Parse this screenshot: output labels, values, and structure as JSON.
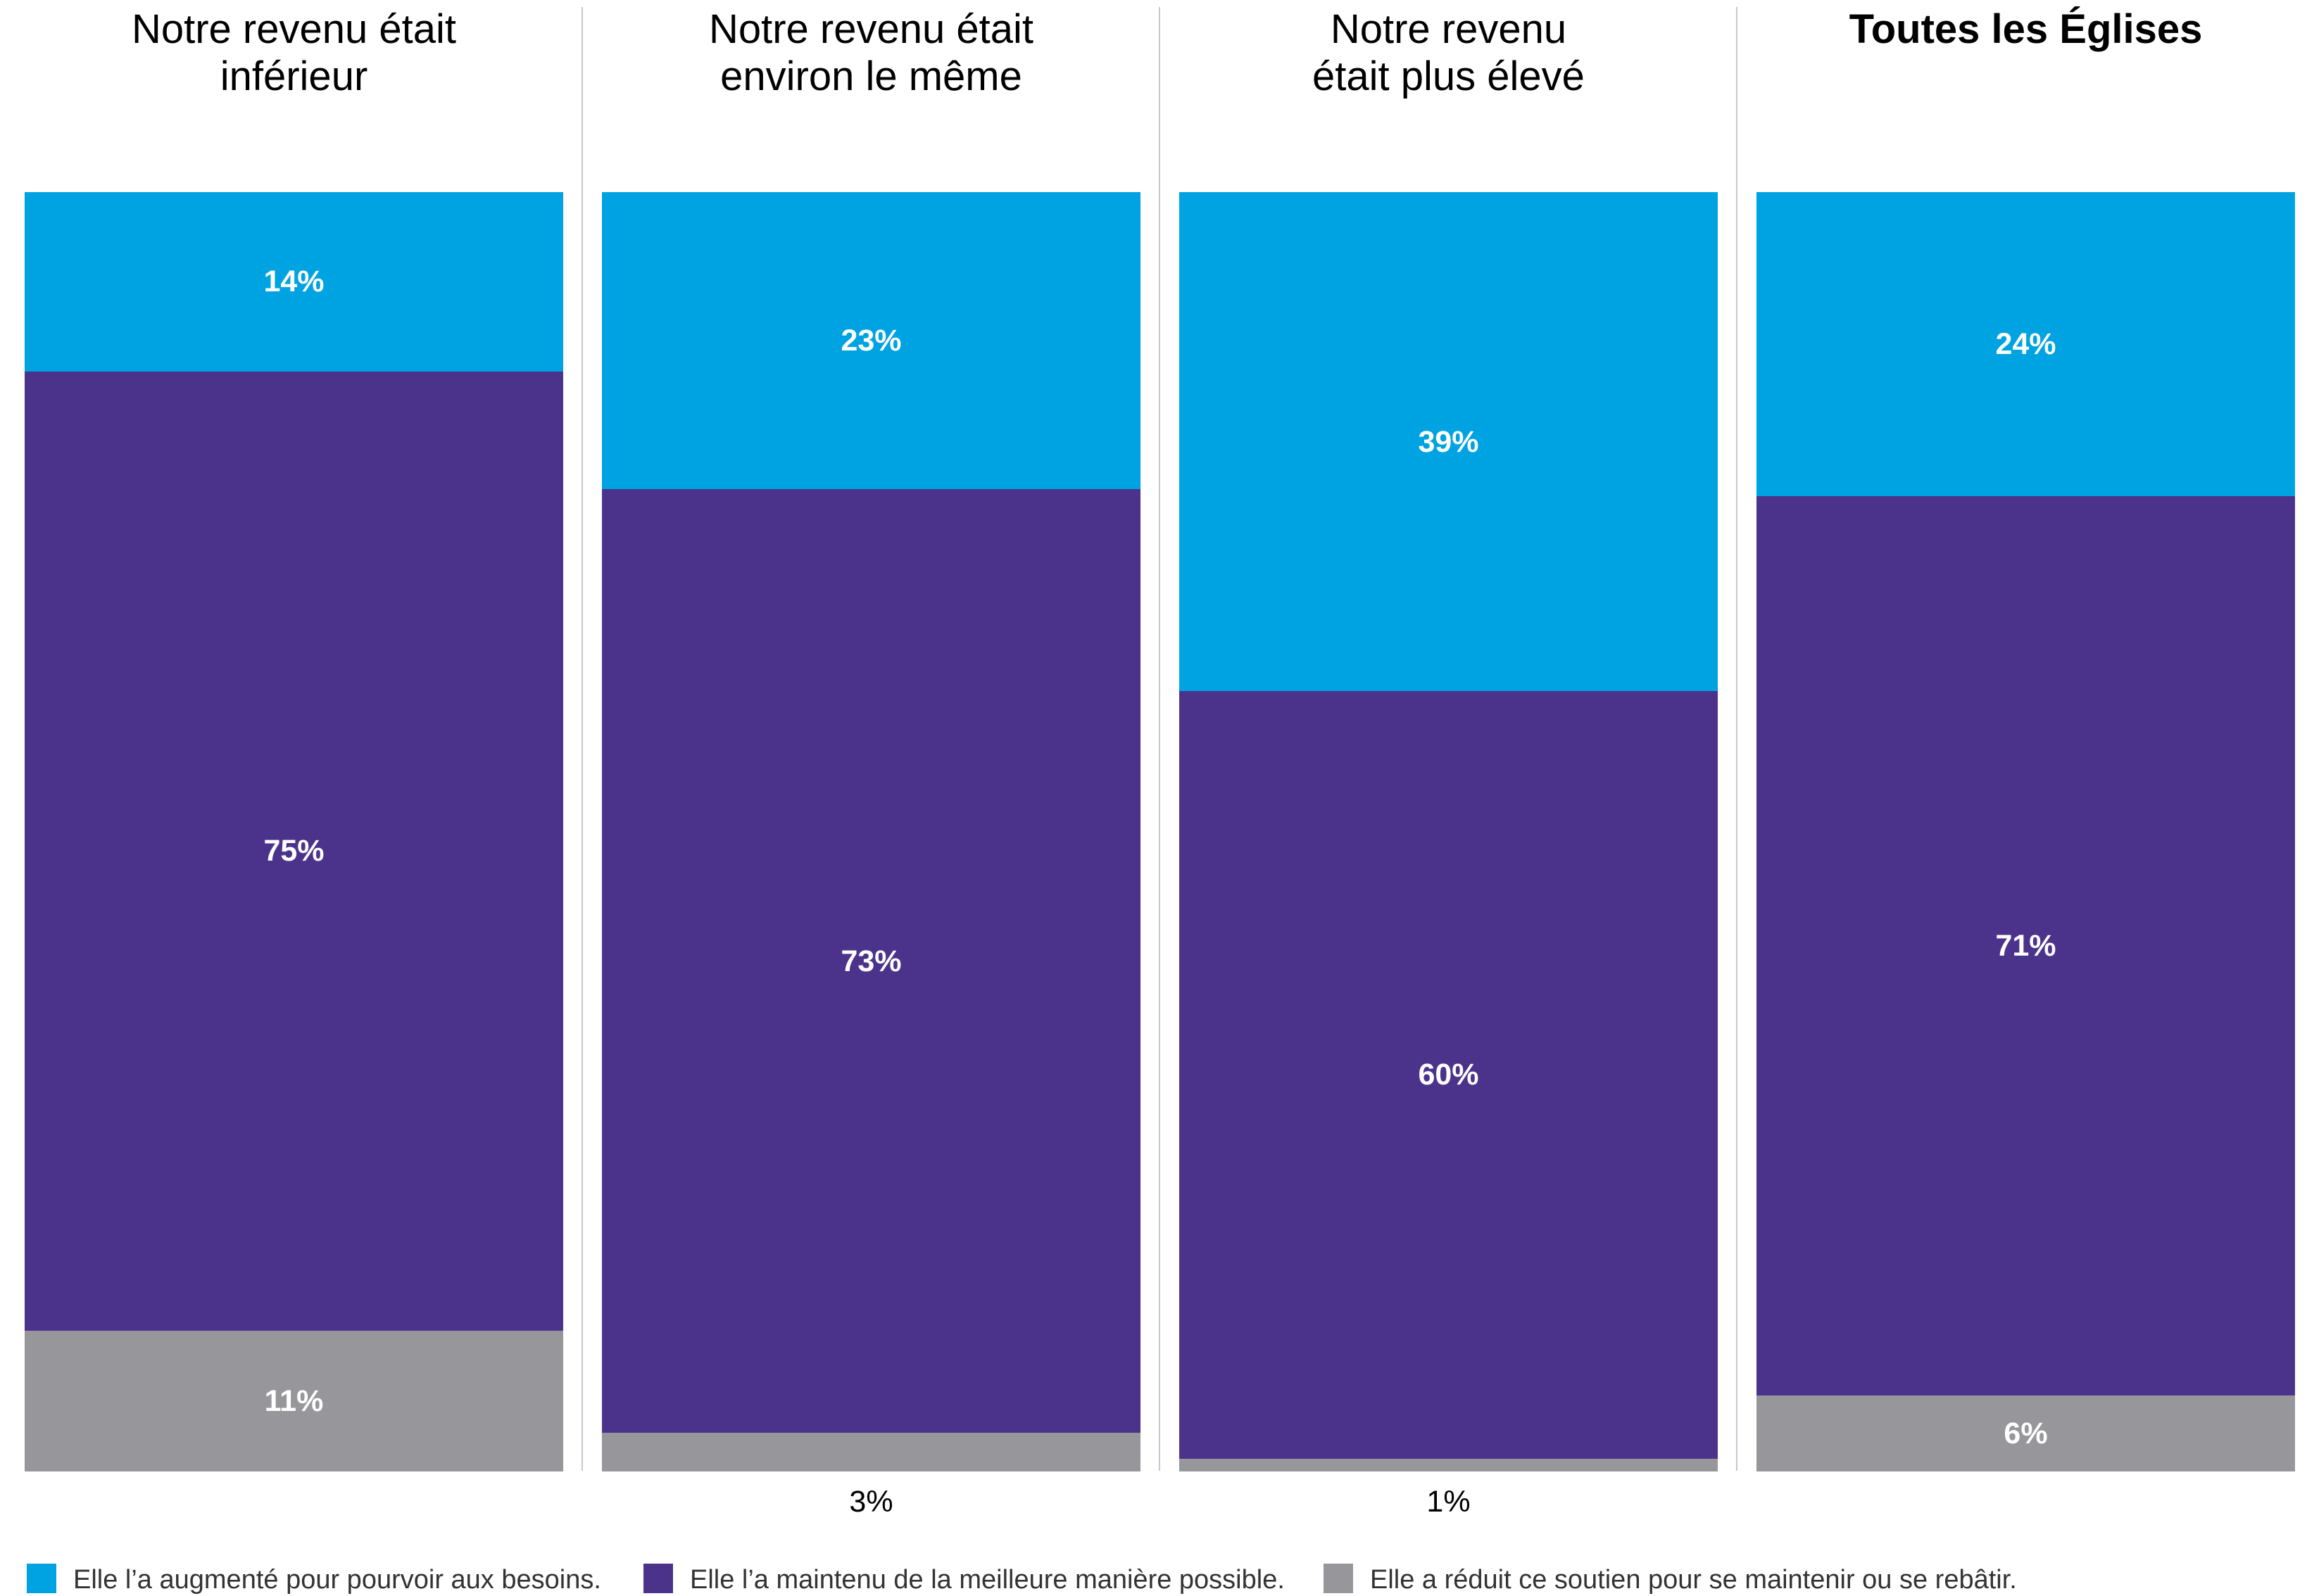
{
  "chart_data": {
    "type": "bar",
    "stacked": true,
    "normalized": true,
    "categories": [
      "Notre revenu était\ninférieur",
      "Notre revenu était\nenviron le même",
      "Notre revenu\nétait plus élevé",
      "Toutes les Églises"
    ],
    "category_bold": [
      false,
      false,
      false,
      true
    ],
    "series": [
      {
        "name": "Elle l’a augmenté pour pourvoir aux besoins.",
        "color": "#00a3e2",
        "values": [
          14,
          23,
          39,
          24
        ],
        "labels": [
          "14%",
          "23%",
          "39%",
          "24%"
        ]
      },
      {
        "name": "Elle l’a maintenu de la meilleure manière possible.",
        "color": "#4b338c",
        "values": [
          75,
          73,
          60,
          71
        ],
        "labels": [
          "75%",
          "73%",
          "60%",
          "71%"
        ]
      },
      {
        "name": "Elle a réduit ce soutien pour se maintenir ou se rebâtir.",
        "color": "#97979b",
        "values": [
          11,
          3,
          1,
          6
        ],
        "labels": [
          "11%",
          "3%",
          "1%",
          "6%"
        ]
      }
    ],
    "ylim": [
      0,
      100
    ],
    "legend_position": "bottom",
    "grid": false
  }
}
